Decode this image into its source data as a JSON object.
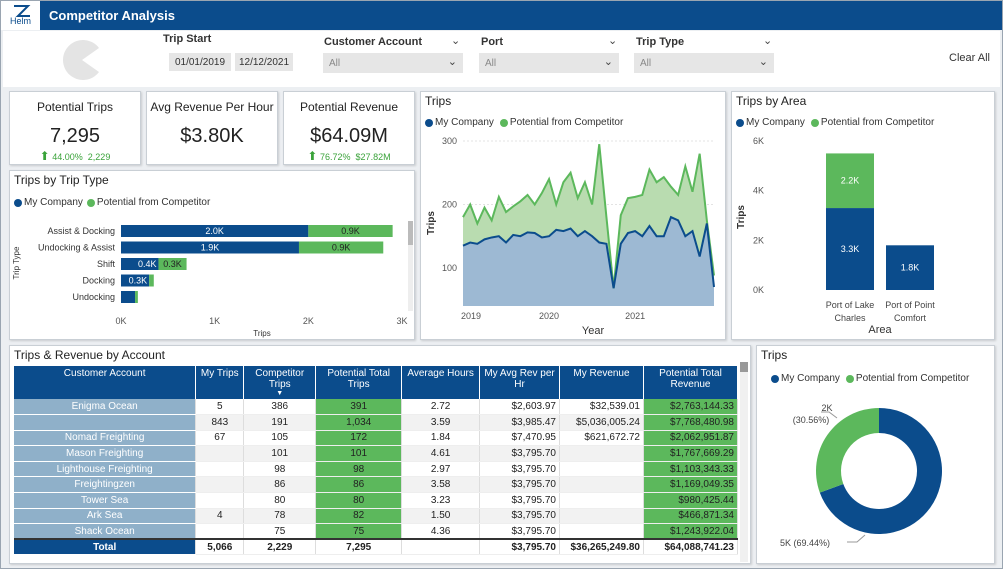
{
  "app": {
    "title": "Competitor Analysis",
    "logo_text": "Helm"
  },
  "filters": {
    "trip_start_label": "Trip Start",
    "date_from": "01/01/2019",
    "date_to": "12/12/2021",
    "customer_account_label": "Customer Account",
    "customer_account_value": "All",
    "port_label": "Port",
    "port_value": "All",
    "trip_type_label": "Trip Type",
    "trip_type_value": "All",
    "clear_all": "Clear All"
  },
  "cards": {
    "potential_trips": {
      "label": "Potential Trips",
      "value": "7,295",
      "pct": "44.00%",
      "delta": "2,229"
    },
    "avg_revenue": {
      "label": "Avg Revenue Per Hour",
      "value": "$3.80K"
    },
    "potential_revenue": {
      "label": "Potential Revenue",
      "value": "$64.09M",
      "pct": "76.72%",
      "delta": "$27.82M"
    }
  },
  "legend": {
    "my_company": "My Company",
    "competitor": "Potential from Competitor"
  },
  "colors": {
    "my_company": "#0b4c8c",
    "competitor": "#5cb85c",
    "competitor_light": "#b9dcb0",
    "company_light": "#9db9d3"
  },
  "trip_type_chart": {
    "title": "Trips by Trip Type",
    "ylabel": "Trip Type",
    "xlabel": "Trips",
    "x_ticks": [
      "0K",
      "1K",
      "2K",
      "3K"
    ],
    "chart_data": {
      "type": "bar",
      "orientation": "horizontal",
      "stacked": true,
      "categories": [
        "Assist & Docking",
        "Undocking & Assist",
        "Shift",
        "Docking",
        "Undocking"
      ],
      "series": [
        {
          "name": "My Company",
          "values": [
            2000,
            1900,
            400,
            300,
            150
          ],
          "labels": [
            "2.0K",
            "1.9K",
            "0.4K",
            "0.3K",
            ""
          ]
        },
        {
          "name": "Potential from Competitor",
          "values": [
            900,
            900,
            300,
            50,
            30
          ],
          "labels": [
            "0.9K",
            "0.9K",
            "0.3K",
            "",
            ""
          ]
        }
      ],
      "xlim": [
        0,
        3000
      ]
    }
  },
  "trips_chart": {
    "title": "Trips",
    "ylabel": "Trips",
    "xlabel": "Year",
    "y_ticks": [
      "300",
      "200",
      "100"
    ],
    "x_ticks": [
      "2019",
      "2020",
      "2021"
    ],
    "chart_data": {
      "type": "area",
      "x_start": "2019-01",
      "x_end": "2021-12",
      "ylim": [
        40,
        300
      ],
      "series": [
        {
          "name": "My Company",
          "values": [
            135,
            140,
            138,
            145,
            148,
            150,
            140,
            152,
            150,
            156,
            155,
            148,
            150,
            160,
            158,
            162,
            150,
            158,
            150,
            140,
            138,
            68,
            138,
            155,
            158,
            150,
            166,
            150,
            150,
            180,
            175,
            150,
            158,
            118,
            170,
            70
          ]
        },
        {
          "name": "Potential from Competitor",
          "values": [
            180,
            200,
            170,
            195,
            175,
            212,
            188,
            197,
            205,
            215,
            200,
            218,
            240,
            200,
            235,
            250,
            210,
            235,
            200,
            295,
            180,
            68,
            183,
            210,
            212,
            215,
            255,
            235,
            243,
            228,
            215,
            260,
            220,
            280,
            175,
            88
          ]
        }
      ]
    }
  },
  "area_chart": {
    "title": "Trips by Area",
    "ylabel": "Trips",
    "xlabel": "Area",
    "y_ticks": [
      "6K",
      "4K",
      "2K",
      "0K"
    ],
    "chart_data": {
      "type": "bar",
      "stacked": true,
      "categories": [
        "Port of Lake Charles",
        "Port of Point Comfort"
      ],
      "series": [
        {
          "name": "My Company",
          "values": [
            3300,
            1800
          ],
          "labels": [
            "3.3K",
            "1.8K"
          ]
        },
        {
          "name": "Potential from Competitor",
          "values": [
            2200,
            0
          ],
          "labels": [
            "2.2K",
            ""
          ]
        }
      ],
      "ylim": [
        0,
        6000
      ]
    }
  },
  "donut_chart": {
    "title": "Trips",
    "chart_data": {
      "type": "pie",
      "donut": true,
      "slices": [
        {
          "name": "My Company",
          "value": 69.44,
          "label": "5K (69.44%)"
        },
        {
          "name": "Potential from Competitor",
          "value": 30.56,
          "label": "2K (30.56%)"
        }
      ]
    },
    "label_competitor_1": "2K",
    "label_competitor_2": "(30.56%)",
    "label_company": "5K (69.44%)"
  },
  "table": {
    "title": "Trips & Revenue by Account",
    "columns": [
      "Customer Account",
      "My Trips",
      "Competitor Trips",
      "Potential Total Trips",
      "Average Hours",
      "My Avg Rev per Hr",
      "My Revenue",
      "Potential Total Revenue"
    ],
    "rows": [
      [
        "Enigma Ocean",
        "5",
        "386",
        "391",
        "2.72",
        "$2,603.97",
        "$32,539.01",
        "$2,763,144.33"
      ],
      [
        "",
        "843",
        "191",
        "1,034",
        "3.59",
        "$3,985.47",
        "$5,036,005.24",
        "$7,768,480.98"
      ],
      [
        "Nomad Freighting",
        "67",
        "105",
        "172",
        "1.84",
        "$7,470.95",
        "$621,672.72",
        "$2,062,951.87"
      ],
      [
        "Mason Freighting",
        "",
        "101",
        "101",
        "4.61",
        "$3,795.70",
        "",
        "$1,767,669.29"
      ],
      [
        "Lighthouse Freighting",
        "",
        "98",
        "98",
        "2.97",
        "$3,795.70",
        "",
        "$1,103,343.33"
      ],
      [
        "Freightingzen",
        "",
        "86",
        "86",
        "3.58",
        "$3,795.70",
        "",
        "$1,169,049.35"
      ],
      [
        "Tower Sea",
        "",
        "80",
        "80",
        "3.23",
        "$3,795.70",
        "",
        "$980,425.44"
      ],
      [
        "Ark Sea",
        "4",
        "78",
        "82",
        "1.50",
        "$3,795.70",
        "",
        "$466,871.34"
      ],
      [
        "Shack Ocean",
        "",
        "75",
        "75",
        "4.36",
        "$3,795.70",
        "",
        "$1,243,922.04"
      ]
    ],
    "total": [
      "Total",
      "5,066",
      "2,229",
      "7,295",
      "",
      "$3,795.70",
      "$36,265,249.80",
      "$64,088,741.23"
    ]
  }
}
